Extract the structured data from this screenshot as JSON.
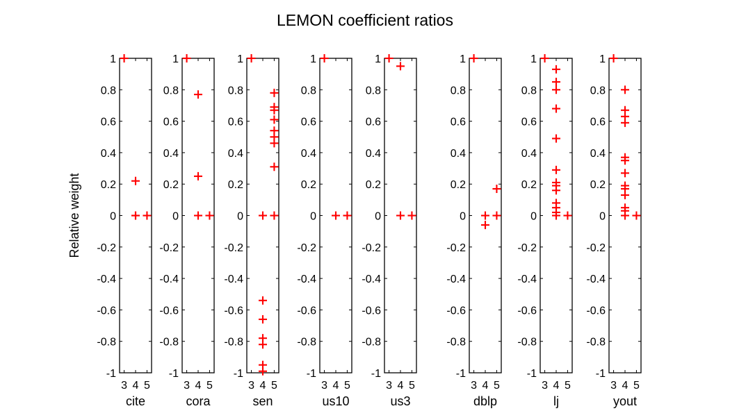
{
  "chart_data": {
    "type": "scatter",
    "title": "LEMON coefficient ratios",
    "ylabel": "Relative weight",
    "ylim": [
      -1,
      1
    ],
    "yticks": [
      1,
      0.8,
      0.6,
      0.4,
      0.2,
      0,
      -0.2,
      -0.4,
      -0.6,
      -0.8,
      -1
    ],
    "xticks": [
      3,
      4,
      5
    ],
    "xlim": [
      2.6,
      5.4
    ],
    "marker": "+",
    "marker_color": "#ff0000",
    "grid": false,
    "legend": "none",
    "panels": [
      {
        "name": "cite",
        "points": [
          [
            3,
            1
          ],
          [
            4,
            0.22
          ],
          [
            4,
            0
          ],
          [
            4,
            0
          ],
          [
            5,
            0
          ]
        ]
      },
      {
        "name": "cora",
        "points": [
          [
            3,
            1
          ],
          [
            4,
            0.77
          ],
          [
            4,
            0.25
          ],
          [
            4,
            0
          ],
          [
            5,
            0
          ]
        ]
      },
      {
        "name": "sen",
        "points": [
          [
            3,
            1
          ],
          [
            4,
            0
          ],
          [
            4,
            -0.54
          ],
          [
            4,
            -0.66
          ],
          [
            4,
            -0.78
          ],
          [
            4,
            -0.82
          ],
          [
            4,
            -0.95
          ],
          [
            4,
            -0.99
          ],
          [
            5,
            0.78
          ],
          [
            5,
            0.69
          ],
          [
            5,
            0.67
          ],
          [
            5,
            0.61
          ],
          [
            5,
            0.54
          ],
          [
            5,
            0.5
          ],
          [
            5,
            0.46
          ],
          [
            5,
            0.31
          ],
          [
            5,
            0
          ]
        ]
      },
      {
        "name": "us10",
        "points": [
          [
            3,
            1
          ],
          [
            4,
            0
          ],
          [
            5,
            0
          ]
        ]
      },
      {
        "name": "us3",
        "points": [
          [
            3,
            1
          ],
          [
            4,
            0.95
          ],
          [
            4,
            0
          ],
          [
            5,
            0
          ]
        ]
      },
      {
        "name": "dblp",
        "points": [
          [
            3,
            1
          ],
          [
            4,
            0
          ],
          [
            4,
            -0.06
          ],
          [
            5,
            0.17
          ],
          [
            5,
            0
          ]
        ]
      },
      {
        "name": "lj",
        "points": [
          [
            3,
            1
          ],
          [
            4,
            0.93
          ],
          [
            4,
            0.85
          ],
          [
            4,
            0.8
          ],
          [
            4,
            0.68
          ],
          [
            4,
            0.49
          ],
          [
            4,
            0.29
          ],
          [
            4,
            0.21
          ],
          [
            4,
            0.19
          ],
          [
            4,
            0.16
          ],
          [
            4,
            0.08
          ],
          [
            4,
            0.05
          ],
          [
            4,
            0.02
          ],
          [
            4,
            0
          ],
          [
            5,
            0
          ]
        ]
      },
      {
        "name": "yout",
        "points": [
          [
            3,
            1
          ],
          [
            4,
            0.8
          ],
          [
            4,
            0.67
          ],
          [
            4,
            0.63
          ],
          [
            4,
            0.59
          ],
          [
            4,
            0.37
          ],
          [
            4,
            0.35
          ],
          [
            4,
            0.27
          ],
          [
            4,
            0.19
          ],
          [
            4,
            0.17
          ],
          [
            4,
            0.13
          ],
          [
            4,
            0.05
          ],
          [
            4,
            0.03
          ],
          [
            4,
            0
          ],
          [
            5,
            0
          ]
        ]
      }
    ]
  }
}
